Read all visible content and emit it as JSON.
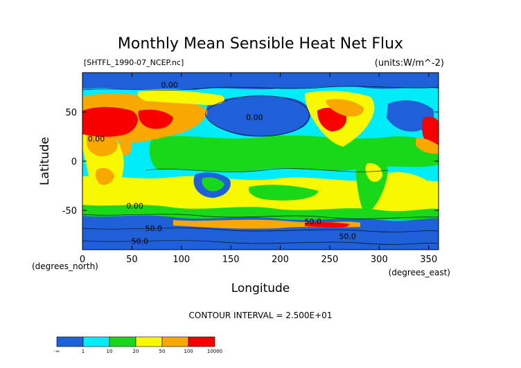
{
  "chart_data": {
    "type": "heatmap",
    "title": "Monthly Mean Sensible Heat Net Flux",
    "file_label": "[SHTFL_1990-07_NCEP.nc]",
    "units_label": "(units:W/m^-2)",
    "xlabel": "Longitude",
    "xunit": "(degrees_east)",
    "ylabel": "Latitude",
    "yunit": "(degrees_north)",
    "xlim": [
      0,
      360
    ],
    "ylim": [
      -90,
      90
    ],
    "x_ticks": [
      0,
      50,
      100,
      150,
      200,
      250,
      300,
      350
    ],
    "y_ticks": [
      50,
      0,
      -50
    ],
    "contour_interval_text": "CONTOUR INTERVAL = 2.500E+01",
    "contour_labels": [
      {
        "text": "0.00",
        "lon": 88,
        "lat": 75
      },
      {
        "text": "0.00",
        "lon": 174,
        "lat": 42
      },
      {
        "text": "0.00",
        "lon": 14,
        "lat": 20
      },
      {
        "text": "0.00",
        "lon": 53,
        "lat": -48
      },
      {
        "text": "50.0",
        "lon": 72,
        "lat": -71
      },
      {
        "text": "50.0",
        "lon": 233,
        "lat": -64
      },
      {
        "text": "50.0",
        "lon": 268,
        "lat": -79
      },
      {
        "text": "50.0",
        "lon": 58,
        "lat": -84
      }
    ],
    "colorbar": {
      "colors": [
        "#1f5fd8",
        "#00ecf8",
        "#18d818",
        "#f8f800",
        "#f8a800",
        "#f80000"
      ],
      "tick_labels": [
        "-∞",
        "1",
        "10",
        "20",
        "50",
        "100",
        "10000"
      ]
    },
    "ocean_color": "#00ecf8"
  }
}
